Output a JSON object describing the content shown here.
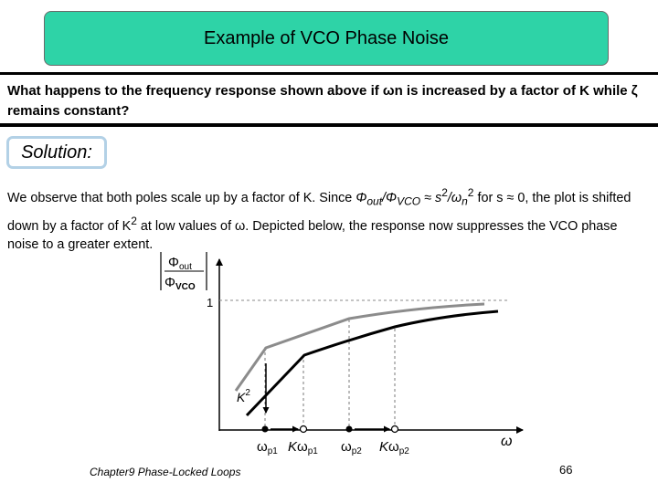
{
  "slide": {
    "title": "Example of VCO Phase Noise",
    "question": "What happens to the frequency response shown above if ωn is increased by a factor of K while ζ remains constant?",
    "solution_label": "Solution:",
    "body": {
      "t1": "We observe that both poles scale up by a factor of K. Since ",
      "phi": "Φ",
      "out_sub": "out",
      "slash": "/Φ",
      "vco_sub": "VCO",
      "t2": " ≈ s",
      "sup2a": "2",
      "t3": "/ω",
      "n_sub": "n",
      "sup2b": "2",
      "t4": " for s ≈ 0, the plot is shifted down by a factor of K",
      "sup2c": "2",
      "t5": " at low values of ω. Depicted below, the response now suppresses the VCO phase noise to a greater extent."
    },
    "footer": "Chapter9 Phase-Locked Loops",
    "page_number": "66"
  },
  "figure": {
    "y_label_num": "Φ",
    "y_label_num_sub": "out",
    "y_label_den": "Φ",
    "y_label_den_sub": "VCO",
    "y_tick": "1",
    "x_axis": "ω",
    "shift_label": "K",
    "shift_sup": "2",
    "ticks": [
      {
        "pre": "",
        "w": "ω",
        "sub": "p1"
      },
      {
        "pre": "K",
        "w": "ω",
        "sub": "p1"
      },
      {
        "pre": "",
        "w": "ω",
        "sub": "p2"
      },
      {
        "pre": "K",
        "w": "ω",
        "sub": "p2"
      }
    ],
    "colors": {
      "original": "#8c8c8c",
      "shifted": "#000000",
      "dashed": "#7a7a7a"
    }
  }
}
